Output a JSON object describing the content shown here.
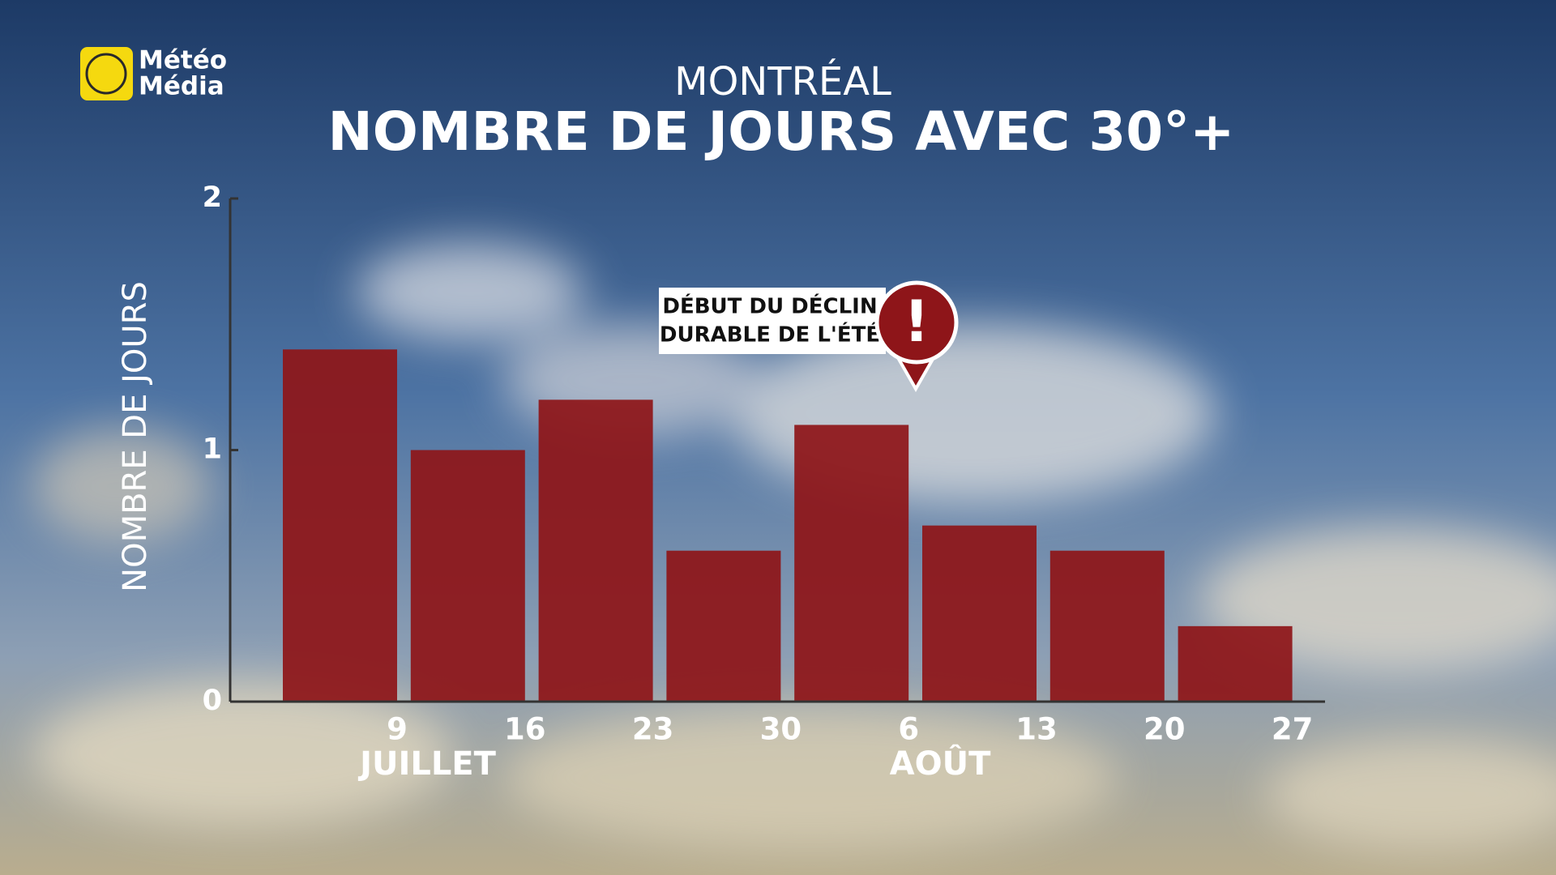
{
  "logo": {
    "line1": "Météo",
    "line2": "Média"
  },
  "chart_data": {
    "type": "bar",
    "subtitle": "MONTRÉAL",
    "title": "NOMBRE DE JOURS AVEC 30°+",
    "y_label": "NOMBRE DE JOURS",
    "categories": [
      "9",
      "16",
      "23",
      "30",
      "6",
      "13",
      "20",
      "27"
    ],
    "month_labels": [
      "JUILLET",
      "AOÛT"
    ],
    "values": [
      1.4,
      1.0,
      1.2,
      0.6,
      1.1,
      0.7,
      0.6,
      0.3
    ],
    "color": "#8e1519",
    "ylim": [
      0,
      2
    ],
    "yticks": [
      0,
      1,
      2
    ],
    "annotation": {
      "line1": "DÉBUT DU DÉCLIN",
      "line2": "DURABLE DE L'ÉTÉ",
      "icon": "!"
    }
  }
}
